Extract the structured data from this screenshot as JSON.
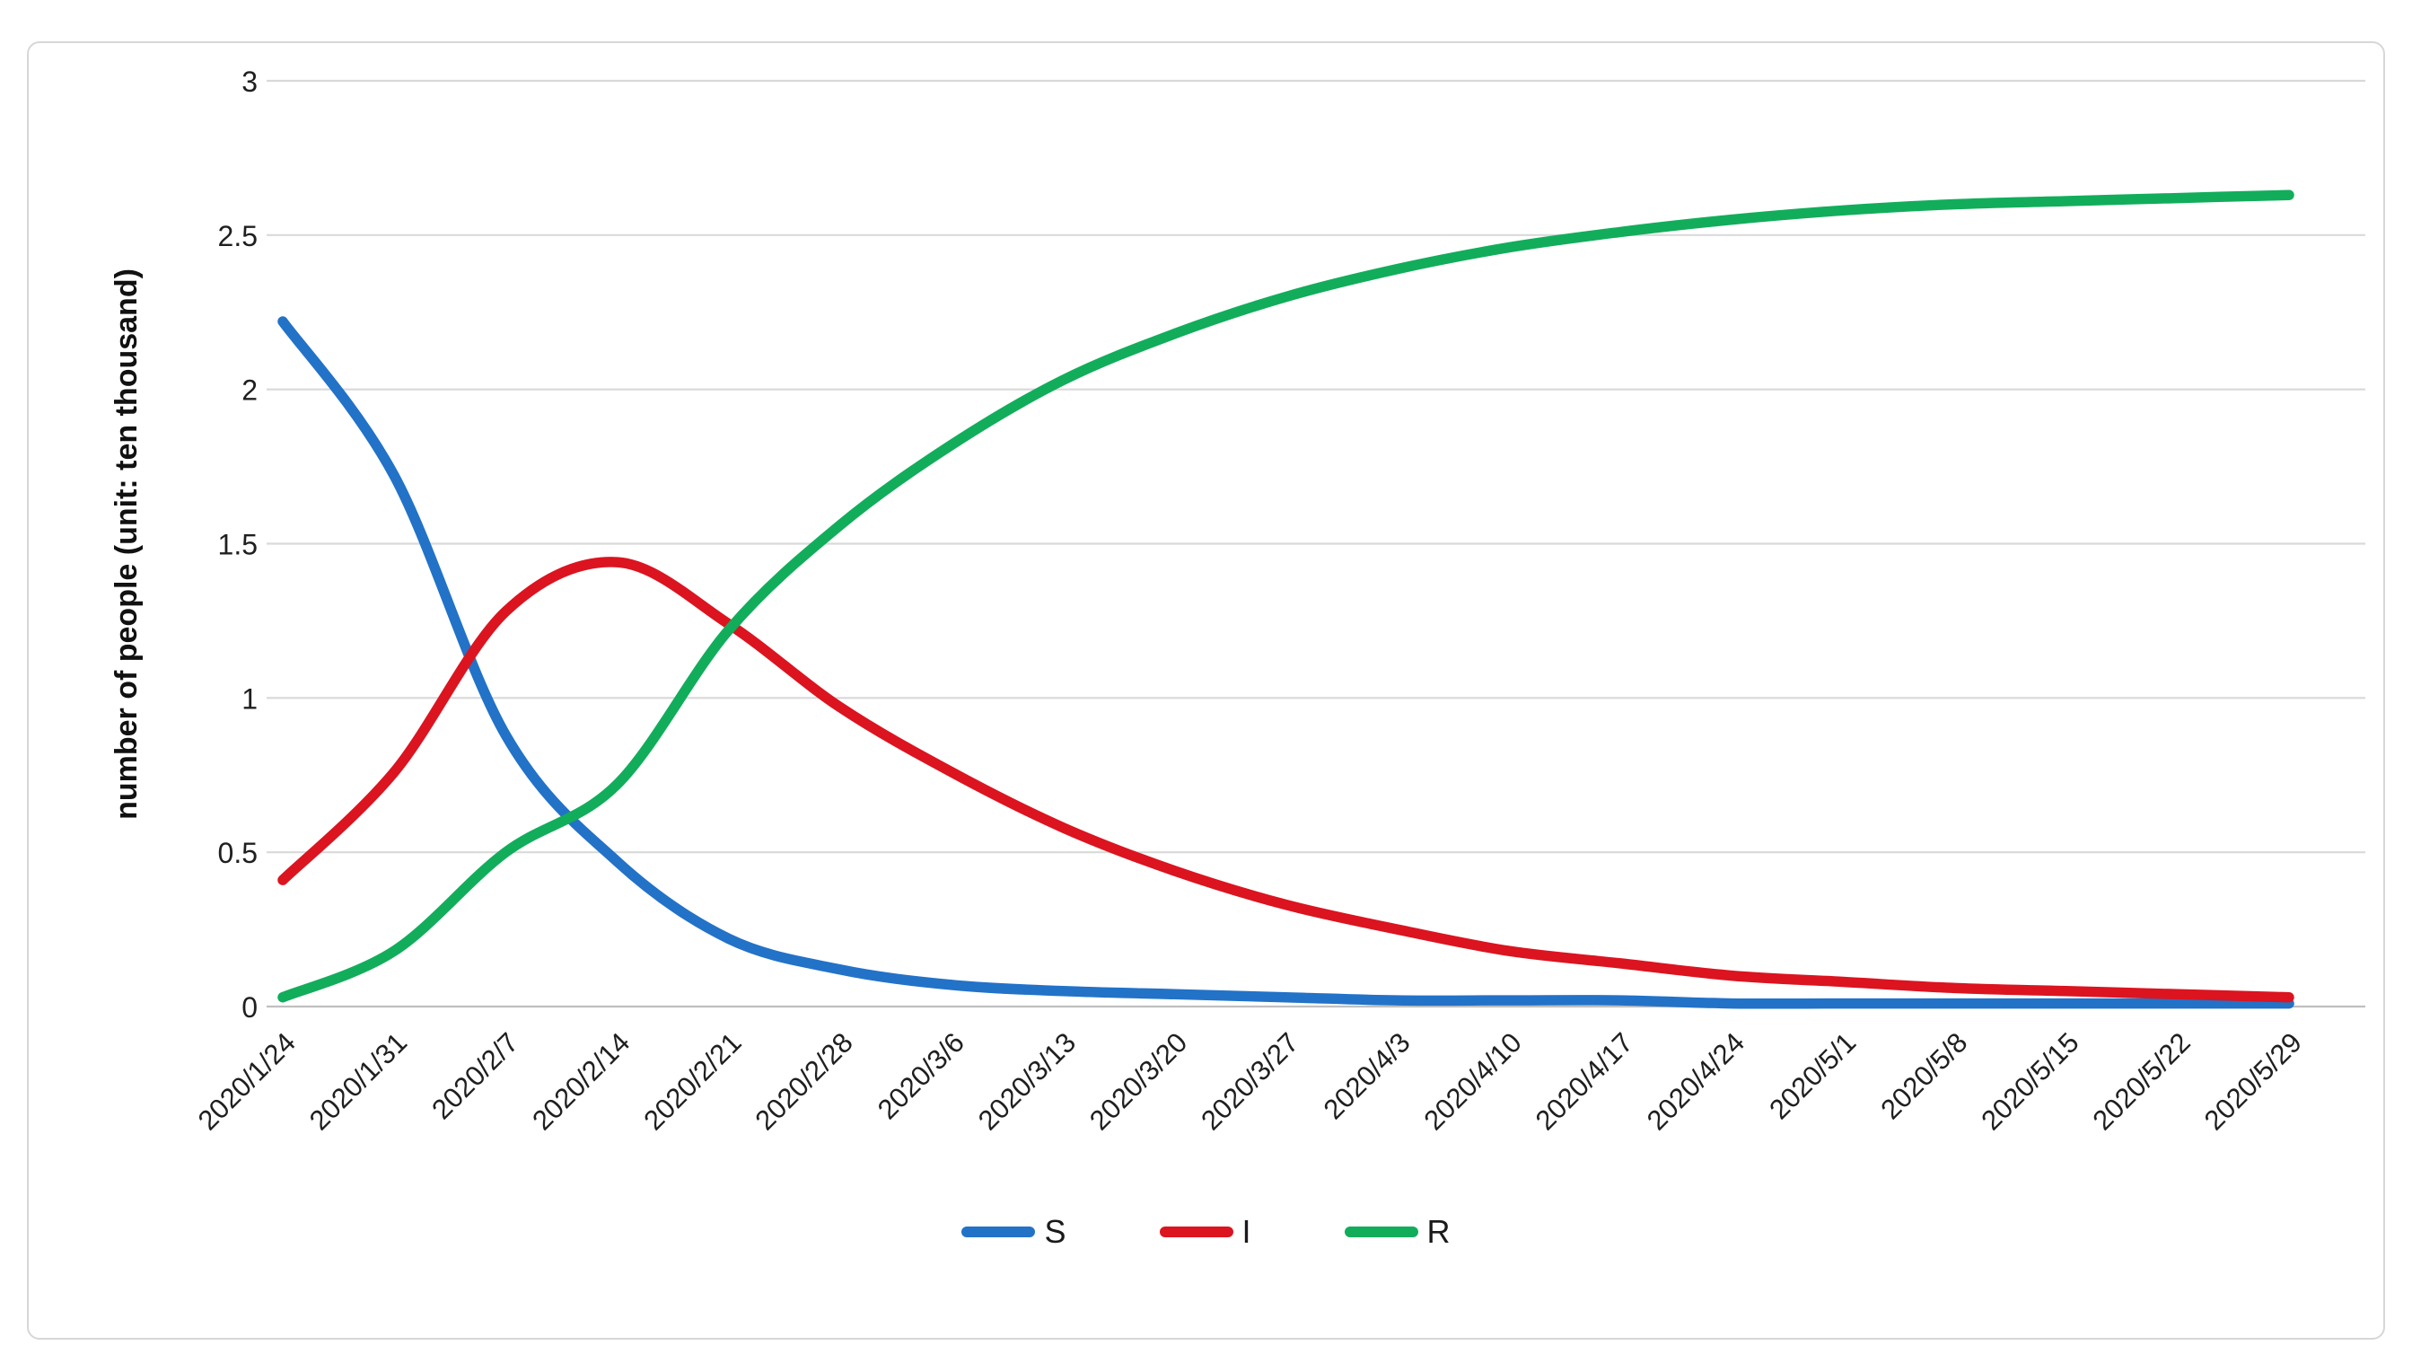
{
  "chart_data": {
    "type": "line",
    "title": "",
    "xlabel": "",
    "ylabel": "number of people (unit: ten thousand)",
    "ylim": [
      0,
      3
    ],
    "y_ticks": [
      "0",
      "0.5",
      "1",
      "1.5",
      "2",
      "2.5",
      "3"
    ],
    "y_tick_values": [
      0,
      0.5,
      1,
      1.5,
      2,
      2.5,
      3
    ],
    "grid": "horizontal gridlines only",
    "legend_position": "bottom center",
    "categories": [
      "2020/1/24",
      "2020/1/31",
      "2020/2/7",
      "2020/2/14",
      "2020/2/21",
      "2020/2/28",
      "2020/3/6",
      "2020/3/13",
      "2020/3/20",
      "2020/3/27",
      "2020/4/3",
      "2020/4/10",
      "2020/4/17",
      "2020/4/24",
      "2020/5/1",
      "2020/5/8",
      "2020/5/15",
      "2020/5/22",
      "2020/5/29"
    ],
    "series": [
      {
        "name": "S",
        "color": "#2272C8",
        "values": [
          2.22,
          1.72,
          0.88,
          0.47,
          0.22,
          0.12,
          0.07,
          0.05,
          0.04,
          0.03,
          0.02,
          0.02,
          0.02,
          0.01,
          0.01,
          0.01,
          0.01,
          0.01,
          0.01
        ]
      },
      {
        "name": "I",
        "color": "#DB1420",
        "values": [
          0.41,
          0.76,
          1.28,
          1.44,
          1.24,
          0.97,
          0.76,
          0.58,
          0.44,
          0.33,
          0.25,
          0.18,
          0.14,
          0.1,
          0.08,
          0.06,
          0.05,
          0.04,
          0.03
        ]
      },
      {
        "name": "R",
        "color": "#12AD5B",
        "values": [
          0.03,
          0.18,
          0.5,
          0.72,
          1.22,
          1.56,
          1.82,
          2.03,
          2.18,
          2.3,
          2.39,
          2.46,
          2.51,
          2.55,
          2.58,
          2.6,
          2.61,
          2.62,
          2.63
        ]
      }
    ],
    "annotations": {
      "i_peak": "I peaks about 1.45 around 2020/2/14",
      "r_final": "R levels off near 2.63",
      "s_final": "S approaches 0.01"
    }
  },
  "colors": {
    "grid": "#D9D9D9",
    "axis": "#BFBFBF",
    "tick_text": "#1f1f1f",
    "frame_border": "#D7D7D7",
    "background": "#FFFFFF"
  }
}
